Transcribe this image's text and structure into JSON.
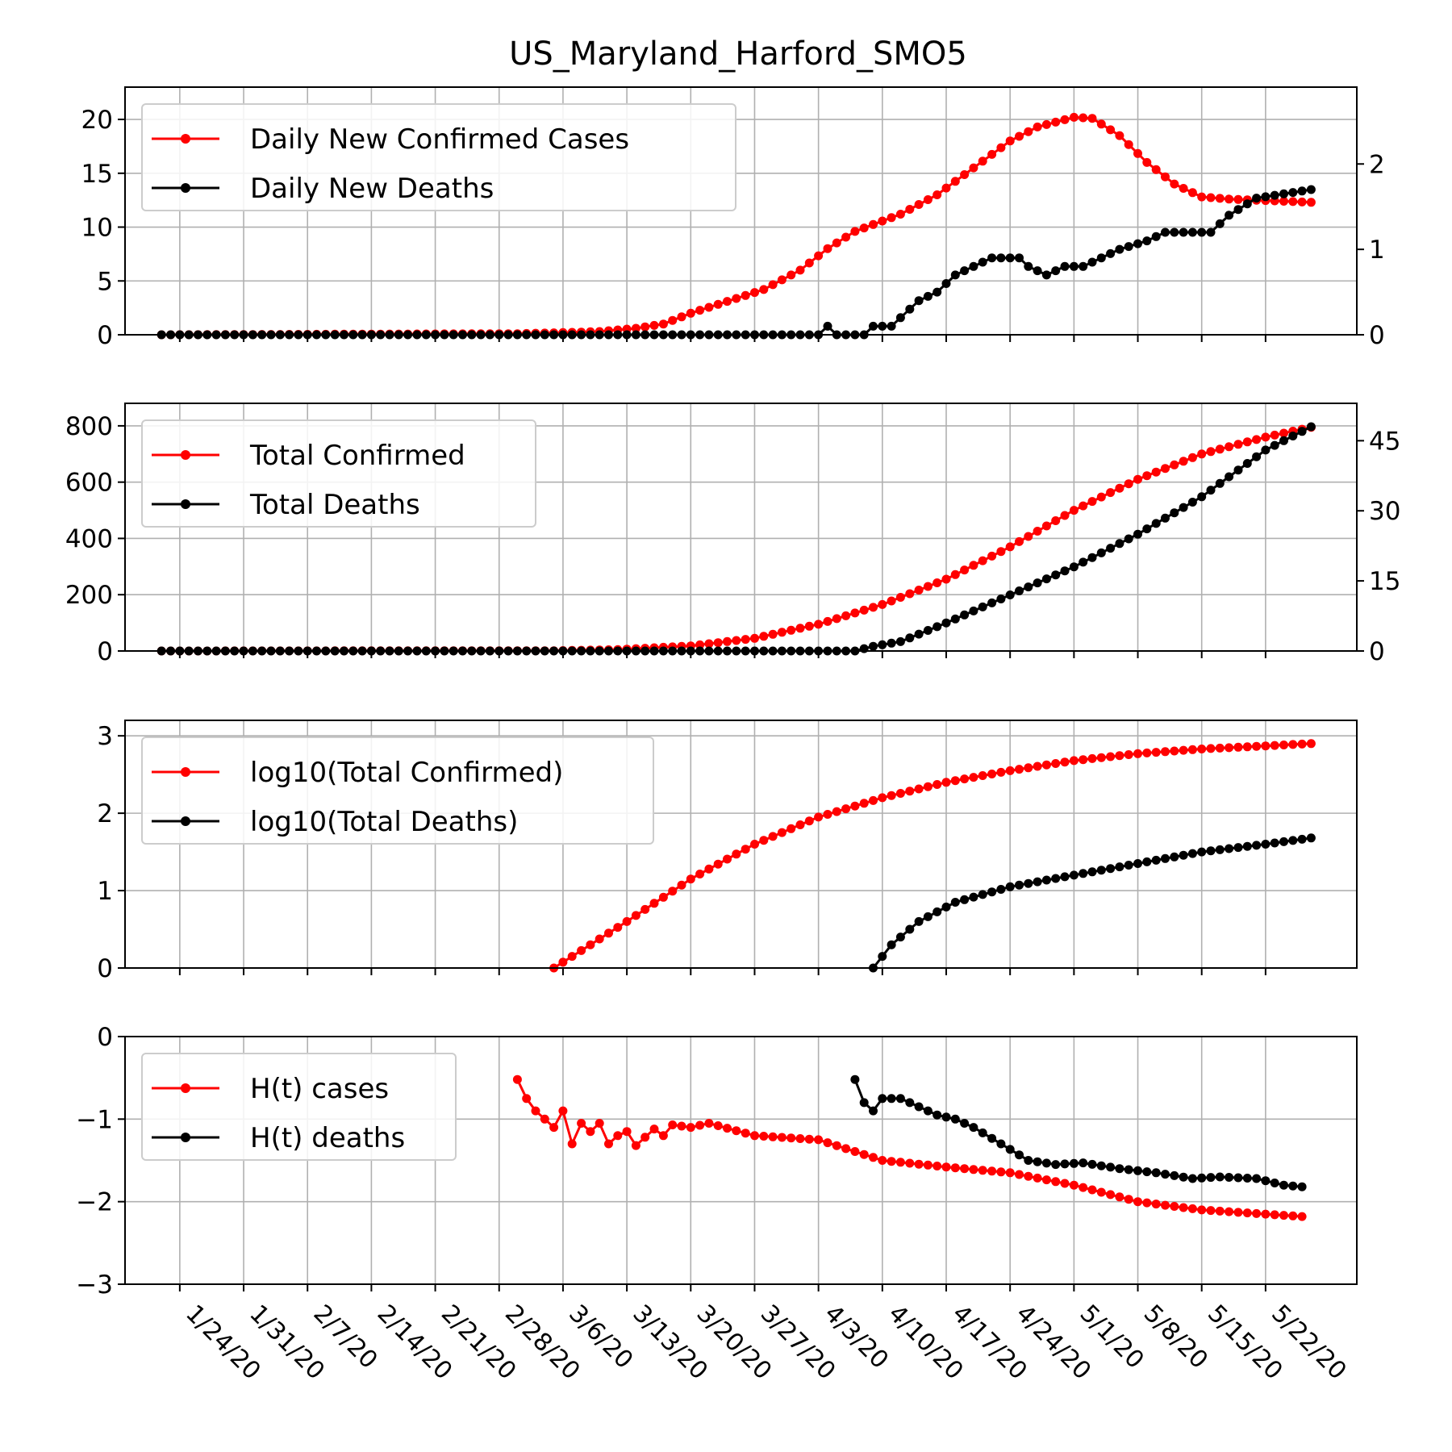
{
  "chart_data": {
    "title": "US_Maryland_Harford_SMO5",
    "type": "line",
    "x_tick_labels": [
      "1/24/20",
      "1/31/20",
      "2/7/20",
      "2/14/20",
      "2/21/20",
      "2/28/20",
      "3/6/20",
      "3/13/20",
      "3/20/20",
      "3/27/20",
      "4/3/20",
      "4/10/20",
      "4/17/20",
      "4/24/20",
      "5/1/20",
      "5/8/20",
      "5/15/20",
      "5/22/20"
    ],
    "x_range": [
      "1/18/20",
      "6/1/20"
    ],
    "grid": true,
    "colors": {
      "cases": "#ff0000",
      "deaths": "#000000"
    },
    "panels": [
      {
        "legend": [
          "Daily New Confirmed Cases",
          "Daily New Deaths"
        ],
        "legend_position": "top-left",
        "ylim_left": [
          0,
          23
        ],
        "yticks_left": [
          0,
          5,
          10,
          15,
          20
        ],
        "ylim_right": [
          0,
          2.9
        ],
        "yticks_right": [
          0,
          1,
          2
        ],
        "series": [
          {
            "axis": "left",
            "start": "1/22/20",
            "end": "5/27/20",
            "knots": [
              [
                "1/22/20",
                0
              ],
              [
                "3/1/20",
                0.1
              ],
              [
                "3/6/20",
                0.2
              ],
              [
                "3/10/20",
                0.3
              ],
              [
                "3/14/20",
                0.6
              ],
              [
                "3/17/20",
                1.0
              ],
              [
                "3/20/20",
                2.0
              ],
              [
                "3/24/20",
                3.1
              ],
              [
                "3/28/20",
                4.2
              ],
              [
                "4/1/20",
                6.0
              ],
              [
                "4/4/20",
                8.0
              ],
              [
                "4/7/20",
                9.6
              ],
              [
                "4/12/20",
                11.2
              ],
              [
                "4/16/20",
                13.0
              ],
              [
                "4/20/20",
                15.5
              ],
              [
                "4/24/20",
                18.0
              ],
              [
                "4/27/20",
                19.3
              ],
              [
                "5/1/20",
                20.2
              ],
              [
                "5/3/20",
                20.1
              ],
              [
                "5/6/20",
                18.5
              ],
              [
                "5/9/20",
                16.0
              ],
              [
                "5/12/20",
                14.0
              ],
              [
                "5/15/20",
                12.8
              ],
              [
                "5/18/20",
                12.6
              ],
              [
                "5/27/20",
                12.3
              ]
            ]
          },
          {
            "axis": "right",
            "start": "1/22/20",
            "end": "5/27/20",
            "knots": [
              [
                "1/22/20",
                0
              ],
              [
                "4/3/20",
                0
              ],
              [
                "4/4/20",
                0.1
              ],
              [
                "4/5/20",
                0
              ],
              [
                "4/8/20",
                0
              ],
              [
                "4/9/20",
                0.1
              ],
              [
                "4/11/20",
                0.1
              ],
              [
                "4/12/20",
                0.2
              ],
              [
                "4/14/20",
                0.4
              ],
              [
                "4/16/20",
                0.5
              ],
              [
                "4/18/20",
                0.7
              ],
              [
                "4/20/20",
                0.8
              ],
              [
                "4/22/20",
                0.9
              ],
              [
                "4/25/20",
                0.9
              ],
              [
                "4/26/20",
                0.8
              ],
              [
                "4/28/20",
                0.7
              ],
              [
                "4/30/20",
                0.8
              ],
              [
                "5/2/20",
                0.8
              ],
              [
                "5/4/20",
                0.9
              ],
              [
                "5/6/20",
                1.0
              ],
              [
                "5/9/20",
                1.1
              ],
              [
                "5/11/20",
                1.2
              ],
              [
                "5/16/20",
                1.2
              ],
              [
                "5/18/20",
                1.4
              ],
              [
                "5/21/20",
                1.6
              ],
              [
                "5/27/20",
                1.7
              ]
            ]
          }
        ]
      },
      {
        "legend": [
          "Total Confirmed",
          "Total Deaths"
        ],
        "legend_position": "top-left",
        "ylim_left": [
          0,
          880
        ],
        "yticks_left": [
          0,
          200,
          400,
          600,
          800
        ],
        "ylim_right": [
          0,
          53
        ],
        "yticks_right": [
          0,
          15,
          30,
          45
        ],
        "series": [
          {
            "axis": "left",
            "start": "1/22/20",
            "end": "5/27/20",
            "knots": [
              [
                "1/22/20",
                0
              ],
              [
                "3/5/20",
                1
              ],
              [
                "3/12/20",
                5
              ],
              [
                "3/20/20",
                18
              ],
              [
                "3/27/20",
                45
              ],
              [
                "4/3/20",
                95
              ],
              [
                "4/10/20",
                165
              ],
              [
                "4/17/20",
                255
              ],
              [
                "4/24/20",
                370
              ],
              [
                "5/1/20",
                500
              ],
              [
                "5/8/20",
                610
              ],
              [
                "5/15/20",
                700
              ],
              [
                "5/22/20",
                760
              ],
              [
                "5/27/20",
                795
              ]
            ]
          },
          {
            "axis": "right",
            "start": "1/22/20",
            "end": "5/27/20",
            "knots": [
              [
                "1/22/20",
                0
              ],
              [
                "4/7/20",
                0
              ],
              [
                "4/9/20",
                1
              ],
              [
                "4/12/20",
                2
              ],
              [
                "4/17/20",
                6
              ],
              [
                "4/24/20",
                12
              ],
              [
                "5/1/20",
                18
              ],
              [
                "5/8/20",
                25
              ],
              [
                "5/15/20",
                33
              ],
              [
                "5/22/20",
                43
              ],
              [
                "5/27/20",
                48
              ]
            ]
          }
        ]
      },
      {
        "legend": [
          "log10(Total Confirmed)",
          "log10(Total Deaths)"
        ],
        "legend_position": "top-left",
        "ylim_left": [
          0,
          3.2
        ],
        "yticks_left": [
          0,
          1,
          2,
          3
        ],
        "series": [
          {
            "axis": "left",
            "start": "3/5/20",
            "end": "5/27/20",
            "knots": [
              [
                "3/5/20",
                0
              ],
              [
                "3/13/20",
                0.6
              ],
              [
                "3/20/20",
                1.15
              ],
              [
                "3/27/20",
                1.6
              ],
              [
                "4/3/20",
                1.95
              ],
              [
                "4/10/20",
                2.2
              ],
              [
                "4/17/20",
                2.4
              ],
              [
                "4/24/20",
                2.55
              ],
              [
                "5/1/20",
                2.68
              ],
              [
                "5/8/20",
                2.77
              ],
              [
                "5/15/20",
                2.83
              ],
              [
                "5/22/20",
                2.87
              ],
              [
                "5/27/20",
                2.9
              ]
            ]
          },
          {
            "axis": "left",
            "start": "4/9/20",
            "end": "5/27/20",
            "knots": [
              [
                "4/9/20",
                0
              ],
              [
                "4/11/20",
                0.3
              ],
              [
                "4/14/20",
                0.6
              ],
              [
                "4/18/20",
                0.85
              ],
              [
                "4/24/20",
                1.05
              ],
              [
                "5/1/20",
                1.2
              ],
              [
                "5/8/20",
                1.35
              ],
              [
                "5/15/20",
                1.5
              ],
              [
                "5/22/20",
                1.6
              ],
              [
                "5/27/20",
                1.68
              ]
            ]
          }
        ]
      },
      {
        "legend": [
          "H(t) cases",
          "H(t) deaths"
        ],
        "legend_position": "top-left",
        "ylim_left": [
          -3,
          0
        ],
        "yticks_left": [
          -3,
          -2,
          -1,
          0
        ],
        "series": [
          {
            "axis": "left",
            "start": "3/1/20",
            "end": "5/26/20",
            "knots": [
              [
                "3/1/20",
                -0.52
              ],
              [
                "3/2/20",
                -0.75
              ],
              [
                "3/3/20",
                -0.9
              ],
              [
                "3/4/20",
                -1.0
              ],
              [
                "3/5/20",
                -1.1
              ],
              [
                "3/6/20",
                -0.9
              ],
              [
                "3/7/20",
                -1.3
              ],
              [
                "3/8/20",
                -1.05
              ],
              [
                "3/9/20",
                -1.15
              ],
              [
                "3/10/20",
                -1.05
              ],
              [
                "3/11/20",
                -1.3
              ],
              [
                "3/12/20",
                -1.2
              ],
              [
                "3/13/20",
                -1.15
              ],
              [
                "3/14/20",
                -1.32
              ],
              [
                "3/15/20",
                -1.22
              ],
              [
                "3/16/20",
                -1.12
              ],
              [
                "3/17/20",
                -1.2
              ],
              [
                "3/18/20",
                -1.07
              ],
              [
                "3/20/20",
                -1.1
              ],
              [
                "3/22/20",
                -1.05
              ],
              [
                "3/27/20",
                -1.2
              ],
              [
                "4/3/20",
                -1.25
              ],
              [
                "4/10/20",
                -1.5
              ],
              [
                "4/17/20",
                -1.58
              ],
              [
                "4/24/20",
                -1.65
              ],
              [
                "5/1/20",
                -1.8
              ],
              [
                "5/8/20",
                -2.0
              ],
              [
                "5/15/20",
                -2.1
              ],
              [
                "5/26/20",
                -2.18
              ]
            ]
          },
          {
            "axis": "left",
            "start": "4/7/20",
            "end": "5/26/20",
            "knots": [
              [
                "4/7/20",
                -0.52
              ],
              [
                "4/8/20",
                -0.8
              ],
              [
                "4/9/20",
                -0.9
              ],
              [
                "4/10/20",
                -0.75
              ],
              [
                "4/12/20",
                -0.75
              ],
              [
                "4/14/20",
                -0.85
              ],
              [
                "4/16/20",
                -0.95
              ],
              [
                "4/18/20",
                -1.0
              ],
              [
                "4/20/20",
                -1.1
              ],
              [
                "4/23/20",
                -1.3
              ],
              [
                "4/26/20",
                -1.5
              ],
              [
                "4/29/20",
                -1.55
              ],
              [
                "5/2/20",
                -1.53
              ],
              [
                "5/6/20",
                -1.6
              ],
              [
                "5/10/20",
                -1.65
              ],
              [
                "5/14/20",
                -1.72
              ],
              [
                "5/17/20",
                -1.7
              ],
              [
                "5/21/20",
                -1.72
              ],
              [
                "5/24/20",
                -1.8
              ],
              [
                "5/26/20",
                -1.82
              ]
            ]
          }
        ]
      }
    ]
  }
}
